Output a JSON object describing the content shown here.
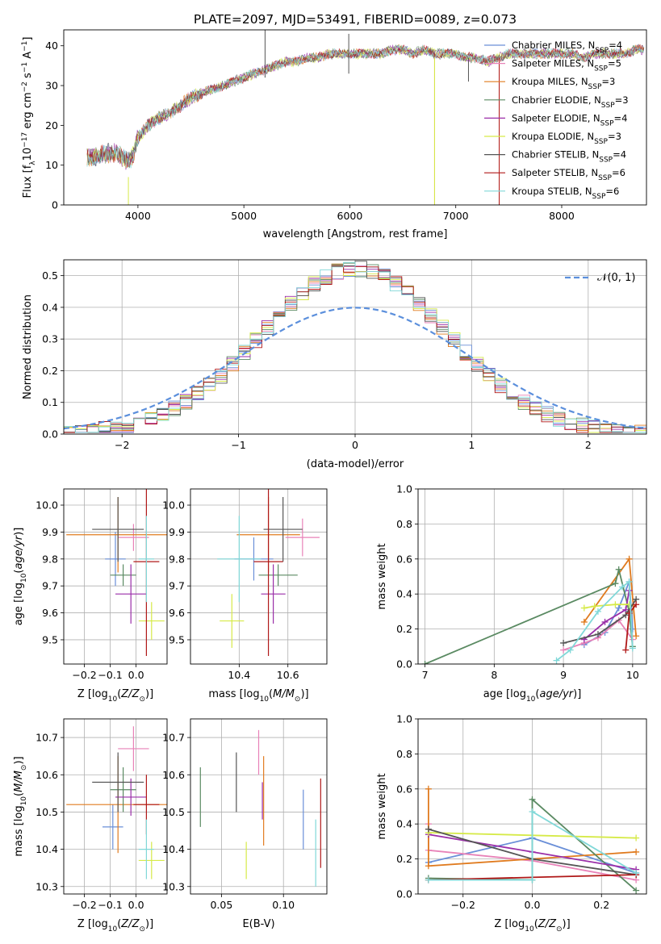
{
  "figure": {
    "title": "PLATE=2097, MJD=53491, FIBERID=0089, z=0.073"
  },
  "colors": {
    "Chabrier MILES": "#6a8fd8",
    "Salpeter MILES": "#e882b8",
    "Kroupa MILES": "#e07b1f",
    "Chabrier ELODIE": "#5a8a62",
    "Salpeter ELODIE": "#9a2ea8",
    "Kroupa ELODIE": "#d6ea48",
    "Chabrier STELIB": "#555555",
    "Salpeter STELIB": "#b01818",
    "Kroupa STELIB": "#80d8d8",
    "N01": "#5b8fdc"
  },
  "chart_data": [
    {
      "id": "spectrum",
      "type": "line",
      "xlabel": "wavelength [Angstrom, rest frame]",
      "ylabel": "Flux [f$_\\lambda$10$^{-17}$ erg cm$^{-2}$ s$^{-1}$ A$^{-1}$]",
      "xlim": [
        3300,
        8800
      ],
      "ylim": [
        0,
        44
      ],
      "xticks": [
        4000,
        5000,
        6000,
        7000,
        8000
      ],
      "yticks": [
        0,
        10,
        20,
        30,
        40
      ],
      "legend_position": "top-right",
      "legend": [
        {
          "name": "Chabrier MILES",
          "label": "Chabrier MILES, N",
          "sub": "SSP",
          "tail": "=4"
        },
        {
          "name": "Salpeter MILES",
          "label": "Salpeter MILES, N",
          "sub": "SSP",
          "tail": "=5"
        },
        {
          "name": "Kroupa MILES",
          "label": "Kroupa MILES, N",
          "sub": "SSP",
          "tail": "=3"
        },
        {
          "name": "Chabrier ELODIE",
          "label": "Chabrier ELODIE, N",
          "sub": "SSP",
          "tail": "=3"
        },
        {
          "name": "Salpeter ELODIE",
          "label": "Salpeter ELODIE, N",
          "sub": "SSP",
          "tail": "=4"
        },
        {
          "name": "Kroupa ELODIE",
          "label": "Kroupa ELODIE, N",
          "sub": "SSP",
          "tail": "=3"
        },
        {
          "name": "Chabrier STELIB",
          "label": "Chabrier STELIB, N",
          "sub": "SSP",
          "tail": "=4"
        },
        {
          "name": "Salpeter STELIB",
          "label": "Salpeter STELIB, N",
          "sub": "SSP",
          "tail": "=6"
        },
        {
          "name": "Kroupa STELIB",
          "label": "Kroupa STELIB, N",
          "sub": "SSP",
          "tail": "=6"
        }
      ],
      "continuum": {
        "x": [
          3520,
          3600,
          3700,
          3800,
          3900,
          3950,
          4000,
          4100,
          4200,
          4300,
          4400,
          4500,
          4600,
          4700,
          4800,
          4900,
          5000,
          5100,
          5200,
          5300,
          5400,
          5500,
          5600,
          5700,
          5800,
          5900,
          6000,
          6100,
          6200,
          6300,
          6400,
          6500,
          6600,
          6700,
          6800,
          6900,
          7000,
          7100,
          7200,
          7300,
          7400,
          7500,
          7600,
          7700,
          7800,
          7900,
          8000,
          8100,
          8200,
          8300,
          8400,
          8500,
          8600,
          8700,
          8800
        ],
        "y": [
          12,
          12,
          13,
          13,
          11,
          12,
          17,
          20,
          22,
          23,
          25,
          27,
          28,
          29,
          30,
          31,
          32,
          33,
          34,
          35,
          36,
          36,
          37,
          37,
          38,
          38,
          38,
          38,
          38,
          38,
          39,
          39,
          38,
          39,
          38,
          38,
          38,
          37,
          37,
          36,
          37,
          38,
          38,
          38,
          38,
          38,
          38,
          38,
          37,
          38,
          38,
          38,
          38,
          39,
          39
        ]
      },
      "spikes": [
        {
          "x": 3910,
          "y0": 0,
          "y1": 7,
          "series": "Kroupa ELODIE"
        },
        {
          "x": 5200,
          "y0": 32,
          "y1": 44,
          "series": "Chabrier STELIB"
        },
        {
          "x": 5990,
          "y0": 33,
          "y1": 43,
          "series": "Chabrier STELIB"
        },
        {
          "x": 6800,
          "y0": 0,
          "y1": 37,
          "series": "Kroupa MILES"
        },
        {
          "x": 6800,
          "y0": 0,
          "y1": 37,
          "series": "Kroupa ELODIE"
        },
        {
          "x": 7410,
          "y0": 0,
          "y1": 37,
          "series": "Kroupa MILES"
        },
        {
          "x": 7410,
          "y0": 0,
          "y1": 37,
          "series": "Salpeter STELIB"
        },
        {
          "x": 7120,
          "y0": 31,
          "y1": 37,
          "series": "Chabrier STELIB"
        }
      ]
    },
    {
      "id": "residuals",
      "type": "line",
      "xlabel": "(data-model)/error",
      "ylabel": "Normed distribution",
      "xlim": [
        -2.5,
        2.5
      ],
      "ylim": [
        0,
        0.55
      ],
      "xticks": [
        -2,
        -1,
        0,
        1,
        2
      ],
      "yticks": [
        0.0,
        0.1,
        0.2,
        0.3,
        0.4,
        0.5
      ],
      "ytick_labels": [
        "0.0",
        "0.1",
        "0.2",
        "0.3",
        "0.4",
        "0.5"
      ],
      "legend_label": "N(0,1)",
      "legend_position": "top-right",
      "bin_width": 0.1,
      "histogram_series": [
        "Chabrier MILES",
        "Salpeter MILES",
        "Kroupa MILES",
        "Chabrier ELODIE",
        "Salpeter ELODIE",
        "Kroupa ELODIE",
        "Chabrier STELIB",
        "Salpeter STELIB",
        "Kroupa STELIB"
      ]
    },
    {
      "id": "age-vs-Z",
      "type": "scatter",
      "xlabel": "Z [log10(Z/Zsun)]",
      "ylabel": "age  [log10(age/yr)]",
      "xlim": [
        -0.28,
        0.12
      ],
      "ylim": [
        9.41,
        10.06
      ],
      "xticks": [
        -0.2,
        -0.1,
        0.0
      ],
      "xtick_labels": [
        "−0.2",
        "−0.1",
        "0.0"
      ],
      "yticks": [
        9.5,
        9.6,
        9.7,
        9.8,
        9.9,
        10.0
      ],
      "ytick_labels": [
        "9.5",
        "9.6",
        "9.7",
        "9.8",
        "9.9",
        "10.0"
      ],
      "points": [
        {
          "series": "Chabrier MILES",
          "x": -0.08,
          "xerr": 0.04,
          "y": 9.8,
          "yerr": 0.1
        },
        {
          "series": "Salpeter MILES",
          "x": -0.01,
          "xerr": 0.06,
          "y": 9.88,
          "yerr": 0.05
        },
        {
          "series": "Kroupa MILES",
          "x": -0.07,
          "xerr": 0.2,
          "y": 9.89,
          "yerr": 0.14
        },
        {
          "series": "Chabrier ELODIE",
          "x": -0.05,
          "xerr": 0.05,
          "y": 9.74,
          "yerr": 0.04
        },
        {
          "series": "Salpeter ELODIE",
          "x": -0.02,
          "xerr": 0.06,
          "y": 9.67,
          "yerr": 0.11
        },
        {
          "series": "Kroupa ELODIE",
          "x": 0.06,
          "xerr": 0.05,
          "y": 9.57,
          "yerr": 0.07
        },
        {
          "series": "Chabrier STELIB",
          "x": -0.07,
          "xerr": 0.1,
          "y": 9.91,
          "yerr": 0.12
        },
        {
          "series": "Salpeter STELIB",
          "x": 0.04,
          "xerr": 0.05,
          "y": 9.79,
          "yerr": 0.35
        },
        {
          "series": "Kroupa STELIB",
          "x": 0.04,
          "xerr": 0.03,
          "y": 9.8,
          "yerr": 0.16
        }
      ]
    },
    {
      "id": "age-vs-mass",
      "type": "scatter",
      "xlabel": "mass [log10(M/Msun)]",
      "ylabel": "",
      "xlim": [
        10.2,
        10.76
      ],
      "ylim": [
        9.41,
        10.06
      ],
      "xticks": [
        10.4,
        10.6
      ],
      "xtick_labels": [
        "10.4",
        "10.6"
      ],
      "yticks": [
        9.5,
        9.6,
        9.7,
        9.8,
        9.9,
        10.0
      ],
      "ytick_labels": [
        "9.5",
        "9.6",
        "9.7",
        "9.8",
        "9.9",
        "10.0"
      ],
      "points": [
        {
          "series": "Chabrier MILES",
          "x": 10.46,
          "xerr": 0.08,
          "y": 9.8,
          "yerr": 0.08
        },
        {
          "series": "Salpeter MILES",
          "x": 10.66,
          "xerr": 0.07,
          "y": 9.88,
          "yerr": 0.07
        },
        {
          "series": "Kroupa MILES",
          "x": 10.52,
          "xerr": 0.13,
          "y": 9.89,
          "yerr": 0.14
        },
        {
          "series": "Chabrier ELODIE",
          "x": 10.56,
          "xerr": 0.08,
          "y": 9.74,
          "yerr": 0.04
        },
        {
          "series": "Salpeter ELODIE",
          "x": 10.54,
          "xerr": 0.05,
          "y": 9.67,
          "yerr": 0.11
        },
        {
          "series": "Kroupa ELODIE",
          "x": 10.37,
          "xerr": 0.05,
          "y": 9.57,
          "yerr": 0.1
        },
        {
          "series": "Chabrier STELIB",
          "x": 10.58,
          "xerr": 0.08,
          "y": 9.91,
          "yerr": 0.12
        },
        {
          "series": "Salpeter STELIB",
          "x": 10.52,
          "xerr": 0.06,
          "y": 9.79,
          "yerr": 0.35
        },
        {
          "series": "Kroupa STELIB",
          "x": 10.4,
          "xerr": 0.09,
          "y": 9.8,
          "yerr": 0.16
        }
      ]
    },
    {
      "id": "massweight-vs-age",
      "type": "line",
      "xlabel": "age  [log10(age/yr)]",
      "ylabel": "mass weight",
      "xlim": [
        6.9,
        10.2
      ],
      "ylim": [
        0,
        1
      ],
      "xticks": [
        7,
        8,
        9,
        10
      ],
      "yticks": [
        0,
        0.2,
        0.4,
        0.6,
        0.8,
        1.0
      ],
      "ytick_labels": [
        "0.0",
        "0.2",
        "0.4",
        "0.6",
        "0.8",
        "1.0"
      ],
      "series": [
        {
          "name": "Chabrier MILES",
          "x": [
            9.3,
            9.6,
            9.8,
            9.95,
            10.0
          ],
          "y": [
            0.11,
            0.18,
            0.32,
            0.47,
            0.2
          ]
        },
        {
          "name": "Salpeter MILES",
          "x": [
            9.0,
            9.3,
            9.5,
            9.8,
            10.0
          ],
          "y": [
            0.08,
            0.12,
            0.15,
            0.25,
            0.14
          ]
        },
        {
          "name": "Kroupa MILES",
          "x": [
            9.3,
            9.95,
            10.05
          ],
          "y": [
            0.24,
            0.6,
            0.16
          ]
        },
        {
          "name": "Chabrier ELODIE",
          "x": [
            7.0,
            9.75,
            9.8,
            9.95,
            10.0
          ],
          "y": [
            0.0,
            0.46,
            0.54,
            0.3,
            0.1
          ]
        },
        {
          "name": "Salpeter ELODIE",
          "x": [
            9.3,
            9.6,
            9.9,
            9.95
          ],
          "y": [
            0.14,
            0.24,
            0.31,
            0.42
          ]
        },
        {
          "name": "Kroupa ELODIE",
          "x": [
            9.3,
            9.45,
            9.75,
            9.95
          ],
          "y": [
            0.32,
            0.33,
            0.34,
            0.34
          ]
        },
        {
          "name": "Chabrier STELIB",
          "x": [
            9.0,
            9.5,
            9.9,
            10.05
          ],
          "y": [
            0.12,
            0.17,
            0.28,
            0.37
          ]
        },
        {
          "name": "Salpeter STELIB",
          "x": [
            9.9,
            9.95,
            10.05
          ],
          "y": [
            0.08,
            0.29,
            0.34
          ]
        },
        {
          "name": "Kroupa STELIB",
          "x": [
            8.9,
            9.1,
            9.5,
            9.85,
            9.95,
            10.0
          ],
          "y": [
            0.02,
            0.08,
            0.3,
            0.44,
            0.47,
            0.09
          ]
        }
      ]
    },
    {
      "id": "mass-vs-Z",
      "type": "scatter",
      "xlabel": "Z [log10(Z/Zsun)]",
      "ylabel": "mass [log10(M/Msun)]",
      "xlim": [
        -0.28,
        0.12
      ],
      "ylim": [
        10.28,
        10.75
      ],
      "xticks": [
        -0.2,
        -0.1,
        0.0
      ],
      "xtick_labels": [
        "−0.2",
        "−0.1",
        "0.0"
      ],
      "yticks": [
        10.3,
        10.4,
        10.5,
        10.6,
        10.7
      ],
      "ytick_labels": [
        "10.3",
        "10.4",
        "10.5",
        "10.6",
        "10.7"
      ],
      "points": [
        {
          "series": "Chabrier MILES",
          "x": -0.09,
          "xerr": 0.04,
          "y": 10.46,
          "yerr": 0.06
        },
        {
          "series": "Salpeter MILES",
          "x": -0.01,
          "xerr": 0.06,
          "y": 10.67,
          "yerr": 0.06
        },
        {
          "series": "Kroupa MILES",
          "x": -0.07,
          "xerr": 0.2,
          "y": 10.52,
          "yerr": 0.13
        },
        {
          "series": "Chabrier ELODIE",
          "x": -0.05,
          "xerr": 0.05,
          "y": 10.56,
          "yerr": 0.06
        },
        {
          "series": "Salpeter ELODIE",
          "x": -0.02,
          "xerr": 0.06,
          "y": 10.54,
          "yerr": 0.05
        },
        {
          "series": "Kroupa ELODIE",
          "x": 0.06,
          "xerr": 0.05,
          "y": 10.37,
          "yerr": 0.05
        },
        {
          "series": "Chabrier STELIB",
          "x": -0.07,
          "xerr": 0.1,
          "y": 10.58,
          "yerr": 0.08
        },
        {
          "series": "Salpeter STELIB",
          "x": 0.04,
          "xerr": 0.05,
          "y": 10.52,
          "yerr": 0.08
        },
        {
          "series": "Kroupa STELIB",
          "x": 0.04,
          "xerr": 0.03,
          "y": 10.4,
          "yerr": 0.08
        }
      ]
    },
    {
      "id": "mass-vs-EBV",
      "type": "scatter",
      "xlabel": "E(B-V)",
      "ylabel": "",
      "xlim": [
        0.025,
        0.135
      ],
      "ylim": [
        10.28,
        10.75
      ],
      "xticks": [
        0.05,
        0.1
      ],
      "xtick_labels": [
        "0.05",
        "0.10"
      ],
      "yticks": [
        10.3,
        10.4,
        10.5,
        10.6,
        10.7
      ],
      "ytick_labels": [
        "10.3",
        "10.4",
        "10.5",
        "10.6",
        "10.7"
      ],
      "points": [
        {
          "series": "Chabrier MILES",
          "x": 0.116,
          "xerr": 0,
          "y": 10.48,
          "yerr": 0.08
        },
        {
          "series": "Salpeter MILES",
          "x": 0.08,
          "xerr": 0,
          "y": 10.66,
          "yerr": 0.06
        },
        {
          "series": "Kroupa MILES",
          "x": 0.084,
          "xerr": 0,
          "y": 10.53,
          "yerr": 0.12
        },
        {
          "series": "Chabrier ELODIE",
          "x": 0.033,
          "xerr": 0,
          "y": 10.54,
          "yerr": 0.08
        },
        {
          "series": "Salpeter ELODIE",
          "x": 0.083,
          "xerr": 0,
          "y": 10.53,
          "yerr": 0.05
        },
        {
          "series": "Kroupa ELODIE",
          "x": 0.07,
          "xerr": 0,
          "y": 10.37,
          "yerr": 0.05
        },
        {
          "series": "Chabrier STELIB",
          "x": 0.062,
          "xerr": 0,
          "y": 10.58,
          "yerr": 0.08
        },
        {
          "series": "Salpeter STELIB",
          "x": 0.13,
          "xerr": 0,
          "y": 10.47,
          "yerr": 0.12
        },
        {
          "series": "Kroupa STELIB",
          "x": 0.126,
          "xerr": 0,
          "y": 10.39,
          "yerr": 0.09
        }
      ]
    },
    {
      "id": "massweight-vs-Z",
      "type": "line",
      "xlabel": "Z [log10(Z/Zsun)]",
      "ylabel": "mass weight",
      "xlim": [
        -0.33,
        0.33
      ],
      "ylim": [
        0,
        1
      ],
      "xticks": [
        -0.2,
        0.0,
        0.2
      ],
      "xtick_labels": [
        "−0.2",
        "0.0",
        "0.2"
      ],
      "yticks": [
        0,
        0.2,
        0.4,
        0.6,
        0.8,
        1.0
      ],
      "ytick_labels": [
        "0.0",
        "0.2",
        "0.4",
        "0.6",
        "0.8",
        "1.0"
      ],
      "series": [
        {
          "name": "Chabrier MILES",
          "x": [
            -0.3,
            0.0,
            0.3
          ],
          "y": [
            0.18,
            0.32,
            0.12
          ]
        },
        {
          "name": "Salpeter MILES",
          "x": [
            -0.3,
            -0.3,
            0.0,
            0.3
          ],
          "y": [
            0.4,
            0.25,
            0.19,
            0.08
          ]
        },
        {
          "name": "Kroupa MILES",
          "x": [
            -0.3,
            -0.3,
            0.3
          ],
          "y": [
            0.6,
            0.16,
            0.24
          ]
        },
        {
          "name": "Chabrier ELODIE",
          "x": [
            -0.3,
            0.0,
            0.0,
            0.3
          ],
          "y": [
            0.09,
            0.08,
            0.54,
            0.02
          ]
        },
        {
          "name": "Salpeter ELODIE",
          "x": [
            -0.3,
            0.0,
            0.3
          ],
          "y": [
            0.34,
            0.24,
            0.14
          ]
        },
        {
          "name": "Kroupa ELODIE",
          "x": [
            -0.3,
            0.3
          ],
          "y": [
            0.35,
            0.32
          ]
        },
        {
          "name": "Chabrier STELIB",
          "x": [
            -0.3,
            0.0,
            0.3
          ],
          "y": [
            0.37,
            0.2,
            0.11
          ]
        },
        {
          "name": "Salpeter STELIB",
          "x": [
            -0.3,
            0.3
          ],
          "y": [
            0.08,
            0.11
          ]
        },
        {
          "name": "Kroupa STELIB",
          "x": [
            -0.3,
            0.0,
            0.0,
            0.3
          ],
          "y": [
            0.08,
            0.08,
            0.47,
            0.12
          ]
        }
      ]
    }
  ]
}
